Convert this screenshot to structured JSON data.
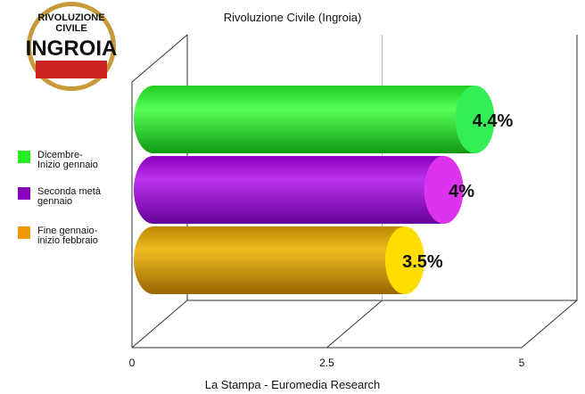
{
  "logo": {
    "line1": "RIVOLUZIONE",
    "line2": "CIVILE",
    "line3": "INGROIA"
  },
  "chart_data": {
    "type": "bar",
    "orientation": "horizontal",
    "title": "Rivoluzione Civile (Ingroia)",
    "source": "La Stampa - Euromedia Research",
    "xlim": [
      0,
      5
    ],
    "ticks": [
      "0",
      "2.5",
      "5"
    ],
    "grid": true,
    "legend_position": "left",
    "series": [
      {
        "name": "Dicembre-Inizio gennaio",
        "legend_lines": [
          "Dicembre-",
          "Inizio gennaio"
        ],
        "value": 4.4,
        "label": "4.4%",
        "color": "#22dd22",
        "cap_color": "#33ee55",
        "legend_color": "#22ee22"
      },
      {
        "name": "Seconda metà gennaio",
        "legend_lines": [
          "Seconda metà",
          "gennaio"
        ],
        "value": 4,
        "label": "4%",
        "color": "#9900cc",
        "cap_color": "#dd33ee",
        "legend_color": "#8800bb"
      },
      {
        "name": "Fine gennaio-inizio febbraio",
        "legend_lines": [
          "Fine gennaio-",
          "inizio febbraio"
        ],
        "value": 3.5,
        "label": "3.5%",
        "color": "#cc9900",
        "cap_color": "#ffdd00",
        "legend_color": "#ee9900"
      }
    ]
  }
}
